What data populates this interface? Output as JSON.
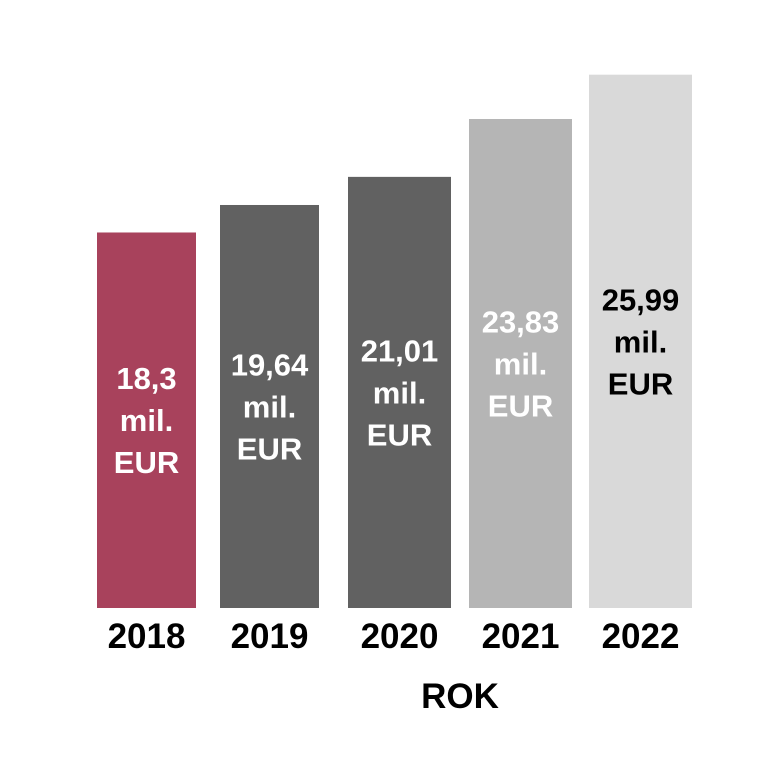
{
  "chart_data": {
    "type": "bar",
    "categories": [
      "2018",
      "2019",
      "2020",
      "2021",
      "2022"
    ],
    "values": [
      18.3,
      19.64,
      21.01,
      23.83,
      25.99
    ],
    "data_labels": [
      [
        "18,3",
        "mil.",
        "EUR"
      ],
      [
        "19,64",
        "mil.",
        "EUR"
      ],
      [
        "21,01",
        "mil.",
        "EUR"
      ],
      [
        "23,83",
        "mil.",
        "EUR"
      ],
      [
        "25,99",
        "mil.",
        "EUR"
      ]
    ],
    "bar_colors": [
      "#a8425c",
      "#616161",
      "#616161",
      "#b5b5b5",
      "#d9d9d9"
    ],
    "label_colors": [
      "#ffffff",
      "#ffffff",
      "#ffffff",
      "#ffffff",
      "#000000"
    ],
    "title": "",
    "xlabel": "ROK",
    "ylabel": "",
    "grid": false,
    "legend": "none"
  }
}
